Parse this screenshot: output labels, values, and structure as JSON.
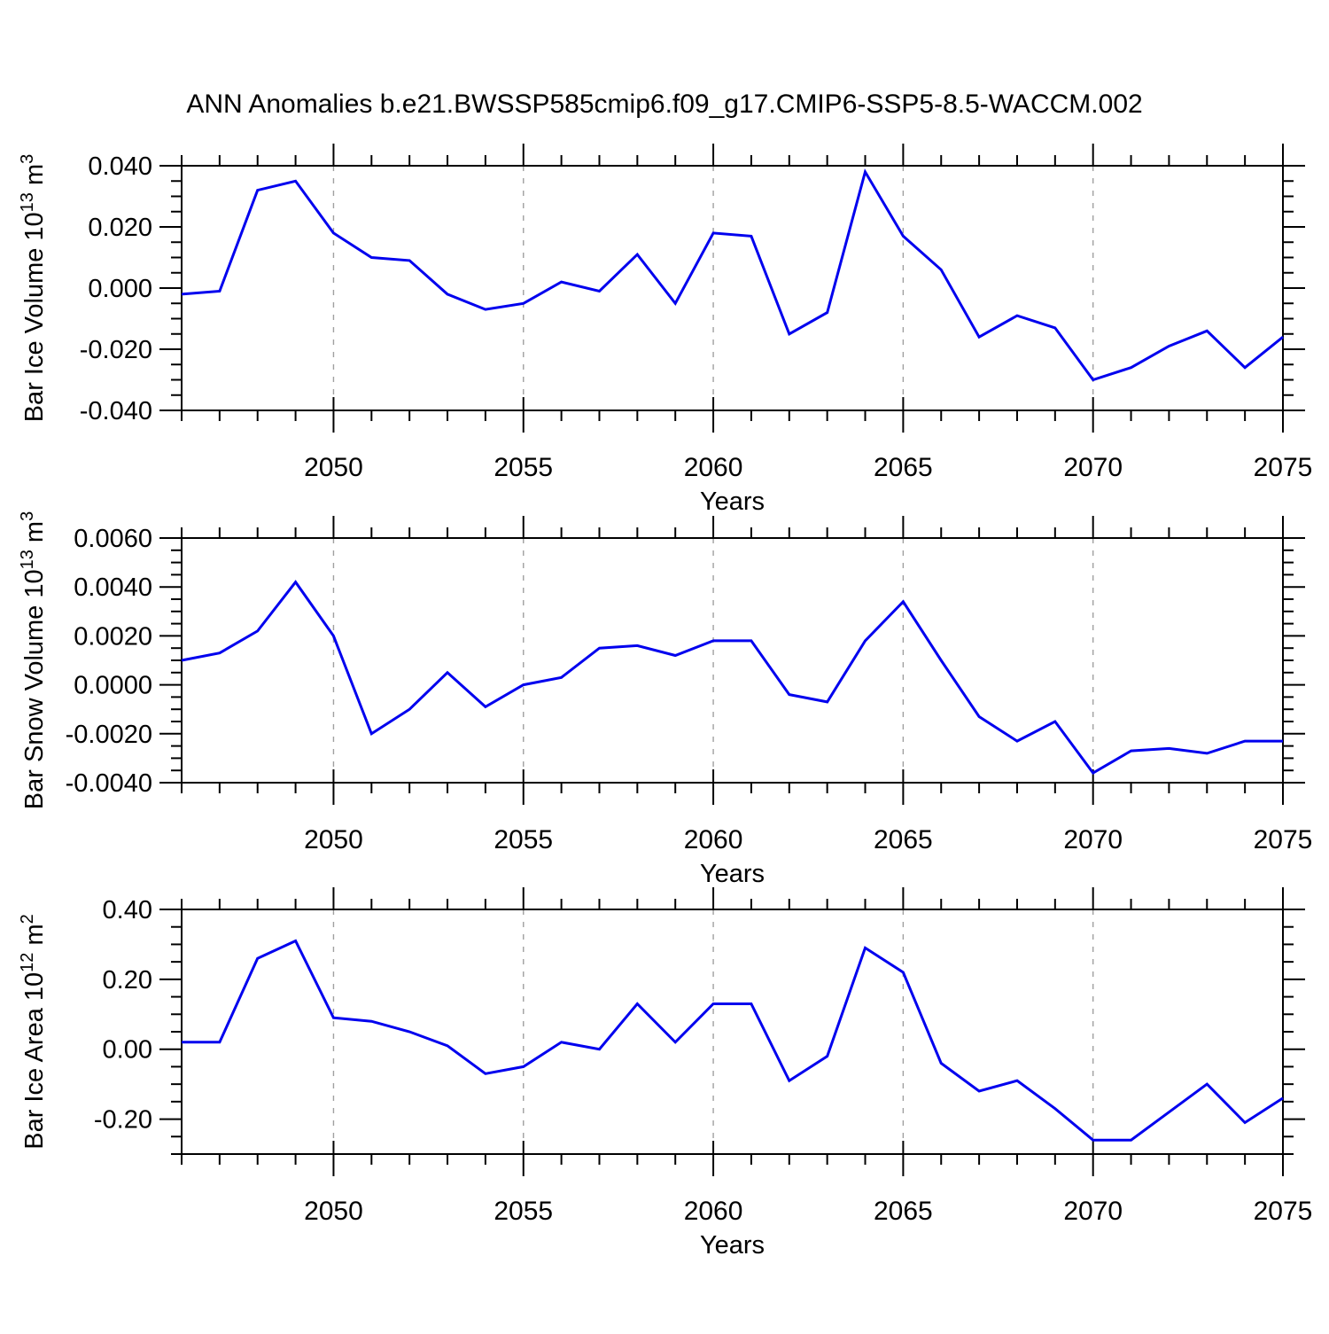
{
  "title": "ANN Anomalies b.e21.BWSSP585cmip6.f09_g17.CMIP6-SSP5-8.5-WACCM.002",
  "style": {
    "line_color": "#0000EE",
    "grid_color": "#a0a0a0",
    "axis_color": "#000000"
  },
  "chart_data": [
    {
      "type": "line",
      "name": "bar-ice-volume",
      "ylabel": "Bar Ice Volume 10^13 m^3",
      "ylabel_parts": [
        {
          "t": "Bar Ice Volume 10"
        },
        {
          "t": "13",
          "sup": true
        },
        {
          "t": " m"
        },
        {
          "t": "3",
          "sup": true
        }
      ],
      "xlabel": "Years",
      "xlim": [
        2046,
        2075
      ],
      "ylim": [
        -0.04,
        0.04
      ],
      "xticks": [
        2050,
        2055,
        2060,
        2065,
        2070,
        2075
      ],
      "xtick_labels": [
        "2050",
        "2055",
        "2060",
        "2065",
        "2070",
        "2075"
      ],
      "grid_years": [
        2050,
        2055,
        2060,
        2065,
        2070
      ],
      "yticks": [
        {
          "v": 0.04,
          "label": "0.040"
        },
        {
          "v": 0.02,
          "label": "0.020"
        },
        {
          "v": 0.0,
          "label": "0.000"
        },
        {
          "v": -0.02,
          "label": "-0.020"
        },
        {
          "v": -0.04,
          "label": "-0.040"
        }
      ],
      "ytick_minor_step": 0.005,
      "x": [
        2046,
        2047,
        2048,
        2049,
        2050,
        2051,
        2052,
        2053,
        2054,
        2055,
        2056,
        2057,
        2058,
        2059,
        2060,
        2061,
        2062,
        2063,
        2064,
        2065,
        2066,
        2067,
        2068,
        2069,
        2070,
        2071,
        2072,
        2073,
        2074,
        2075
      ],
      "values": [
        -0.002,
        -0.001,
        0.032,
        0.035,
        0.018,
        0.01,
        0.009,
        -0.002,
        -0.007,
        -0.005,
        0.002,
        -0.001,
        0.011,
        -0.005,
        0.018,
        0.017,
        -0.015,
        -0.008,
        0.038,
        0.017,
        0.006,
        -0.016,
        -0.009,
        -0.013,
        -0.03,
        -0.026,
        -0.019,
        -0.014,
        -0.026,
        -0.016
      ]
    },
    {
      "type": "line",
      "name": "bar-snow-volume",
      "ylabel": "Bar Snow Volume 10^13 m^3",
      "ylabel_parts": [
        {
          "t": "Bar Snow Volume 10"
        },
        {
          "t": "13",
          "sup": true
        },
        {
          "t": " m"
        },
        {
          "t": "3",
          "sup": true
        }
      ],
      "xlabel": "Years",
      "xlim": [
        2046,
        2075
      ],
      "ylim": [
        -0.004,
        0.006
      ],
      "xticks": [
        2050,
        2055,
        2060,
        2065,
        2070,
        2075
      ],
      "xtick_labels": [
        "2050",
        "2055",
        "2060",
        "2065",
        "2070",
        "2075"
      ],
      "grid_years": [
        2050,
        2055,
        2060,
        2065,
        2070
      ],
      "yticks": [
        {
          "v": 0.006,
          "label": "0.0060"
        },
        {
          "v": 0.004,
          "label": "0.0040"
        },
        {
          "v": 0.002,
          "label": "0.0020"
        },
        {
          "v": 0.0,
          "label": "0.0000"
        },
        {
          "v": -0.002,
          "label": "-0.0020"
        },
        {
          "v": -0.004,
          "label": "-0.0040"
        }
      ],
      "ytick_minor_step": 0.0005,
      "x": [
        2046,
        2047,
        2048,
        2049,
        2050,
        2051,
        2052,
        2053,
        2054,
        2055,
        2056,
        2057,
        2058,
        2059,
        2060,
        2061,
        2062,
        2063,
        2064,
        2065,
        2066,
        2067,
        2068,
        2069,
        2070,
        2071,
        2072,
        2073,
        2074,
        2075
      ],
      "values": [
        0.001,
        0.0013,
        0.0022,
        0.0042,
        0.002,
        -0.002,
        -0.001,
        0.0005,
        -0.0009,
        0.0,
        0.0003,
        0.0015,
        0.0016,
        0.0012,
        0.0018,
        0.0018,
        -0.0004,
        -0.0007,
        0.0018,
        0.0034,
        0.001,
        -0.0013,
        -0.0023,
        -0.0015,
        -0.0036,
        -0.0027,
        -0.0026,
        -0.0028,
        -0.0023,
        -0.0023
      ]
    },
    {
      "type": "line",
      "name": "bar-ice-area",
      "ylabel": "Bar Ice Area 10^12 m^2",
      "ylabel_parts": [
        {
          "t": "Bar Ice Area 10"
        },
        {
          "t": "12",
          "sup": true
        },
        {
          "t": " m"
        },
        {
          "t": "2",
          "sup": true
        }
      ],
      "xlabel": "Years",
      "xlim": [
        2046,
        2075
      ],
      "ylim": [
        -0.3,
        0.4
      ],
      "xticks": [
        2050,
        2055,
        2060,
        2065,
        2070,
        2075
      ],
      "xtick_labels": [
        "2050",
        "2055",
        "2060",
        "2065",
        "2070",
        "2075"
      ],
      "grid_years": [
        2050,
        2055,
        2060,
        2065,
        2070
      ],
      "yticks": [
        {
          "v": 0.4,
          "label": "0.40"
        },
        {
          "v": 0.2,
          "label": "0.20"
        },
        {
          "v": 0.0,
          "label": "0.00"
        },
        {
          "v": -0.2,
          "label": "-0.20"
        }
      ],
      "ytick_minor_step": 0.05,
      "x": [
        2046,
        2047,
        2048,
        2049,
        2050,
        2051,
        2052,
        2053,
        2054,
        2055,
        2056,
        2057,
        2058,
        2059,
        2060,
        2061,
        2062,
        2063,
        2064,
        2065,
        2066,
        2067,
        2068,
        2069,
        2070,
        2071,
        2072,
        2073,
        2074,
        2075
      ],
      "values": [
        0.02,
        0.02,
        0.26,
        0.31,
        0.09,
        0.08,
        0.05,
        0.01,
        -0.07,
        -0.05,
        0.02,
        0.0,
        0.13,
        0.02,
        0.13,
        0.13,
        -0.09,
        -0.02,
        0.29,
        0.22,
        -0.04,
        -0.12,
        -0.09,
        -0.17,
        -0.26,
        -0.26,
        -0.18,
        -0.1,
        -0.21,
        -0.14
      ]
    }
  ]
}
